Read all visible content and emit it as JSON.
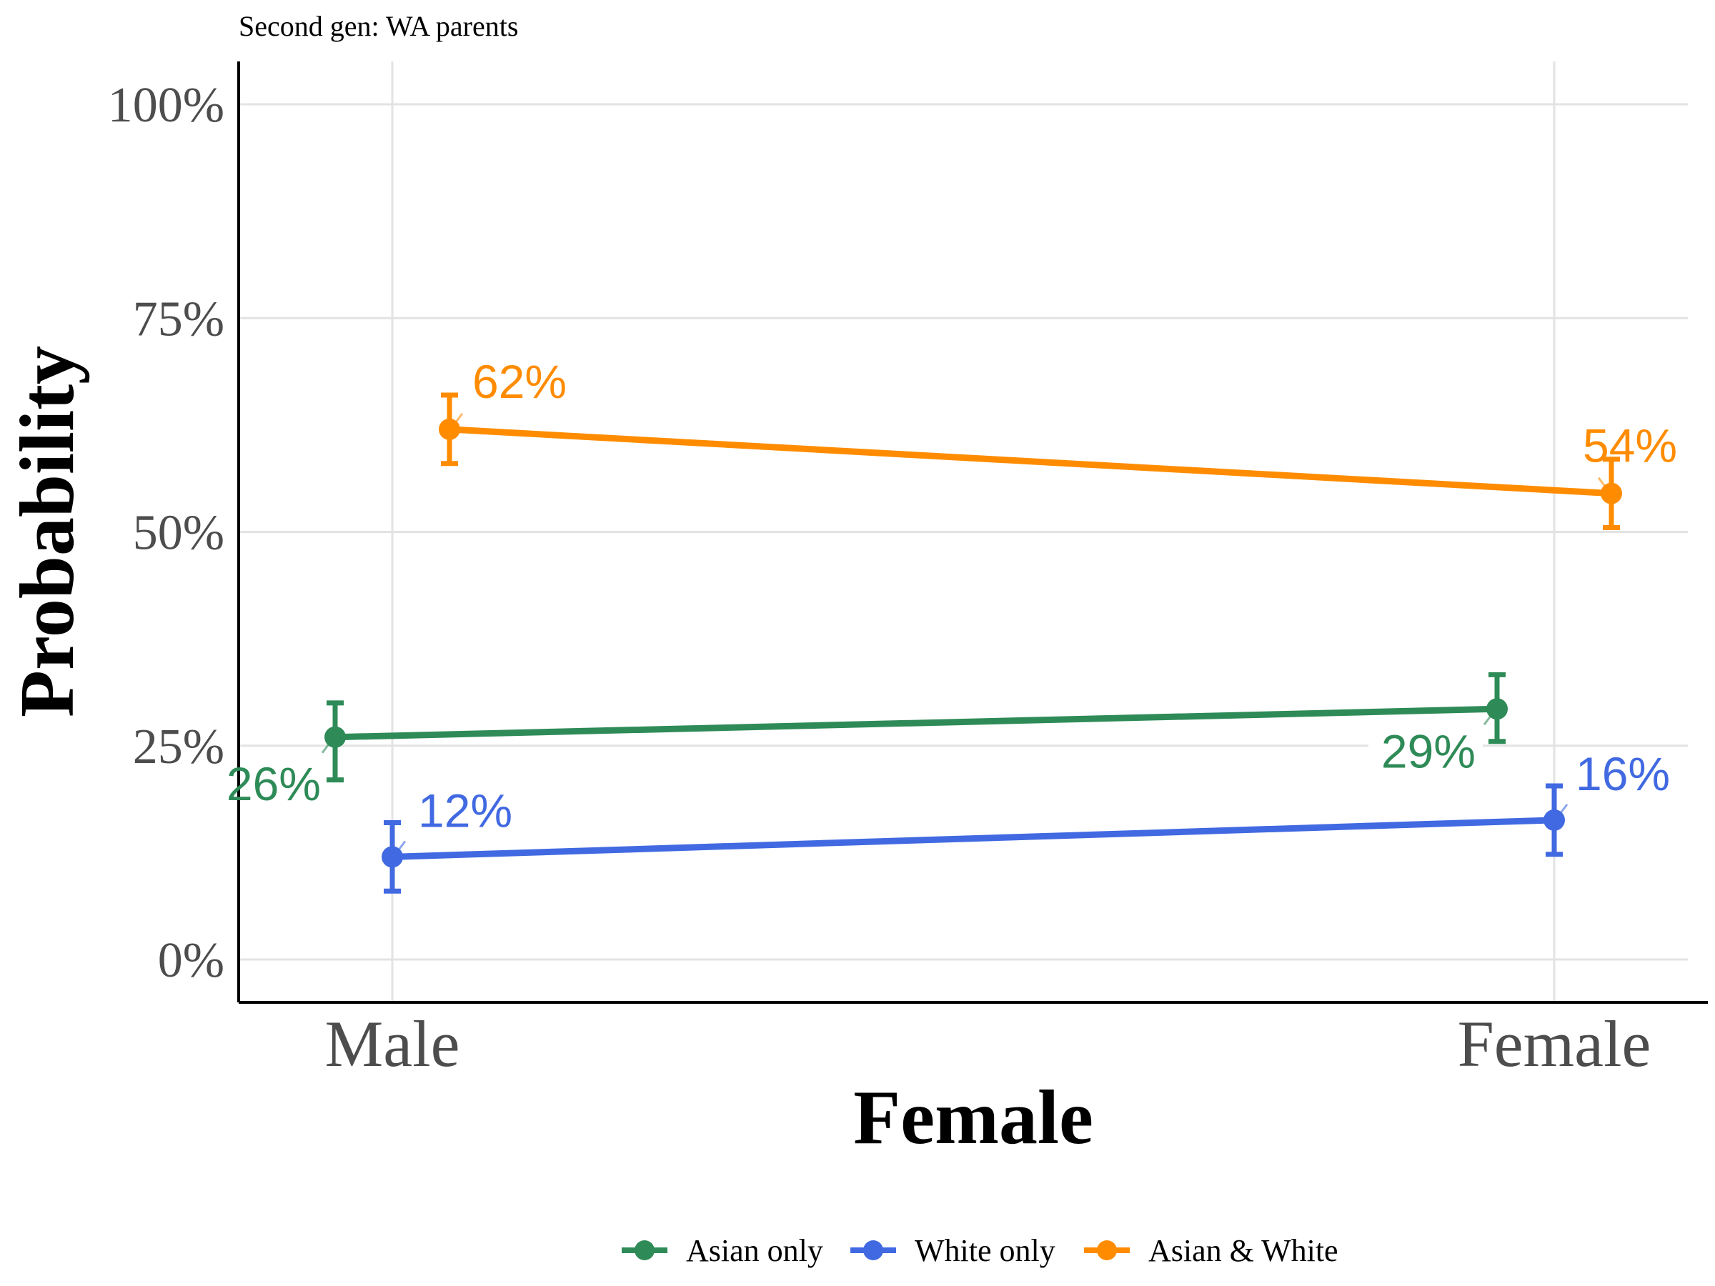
{
  "subtitle": "Second gen: WA parents",
  "chart_data": {
    "type": "line",
    "title": "",
    "subtitle": "Second gen: WA parents",
    "xlabel": "Female",
    "ylabel": "Probability",
    "categories": [
      "Male",
      "Female"
    ],
    "y_ticks": [
      "0%",
      "25%",
      "50%",
      "75%",
      "100%"
    ],
    "ylim": [
      -0.05,
      1.05
    ],
    "grid": true,
    "legend_position": "bottom",
    "series": [
      {
        "name": "Asian only",
        "color": "#2e8b57",
        "values": [
          0.26,
          0.293
        ],
        "ci_lower": [
          0.21,
          0.255
        ],
        "ci_upper": [
          0.3,
          0.333
        ],
        "labels": [
          "26%",
          "29%"
        ]
      },
      {
        "name": "White only",
        "color": "#4169e1",
        "values": [
          0.12,
          0.163
        ],
        "ci_lower": [
          0.08,
          0.123
        ],
        "ci_upper": [
          0.16,
          0.203
        ],
        "labels": [
          "12%",
          "16%"
        ]
      },
      {
        "name": "Asian & White",
        "color": "#ff8c00",
        "values": [
          0.62,
          0.545
        ],
        "ci_lower": [
          0.58,
          0.505
        ],
        "ci_upper": [
          0.66,
          0.585
        ],
        "labels": [
          "62%",
          "54%"
        ]
      }
    ]
  }
}
